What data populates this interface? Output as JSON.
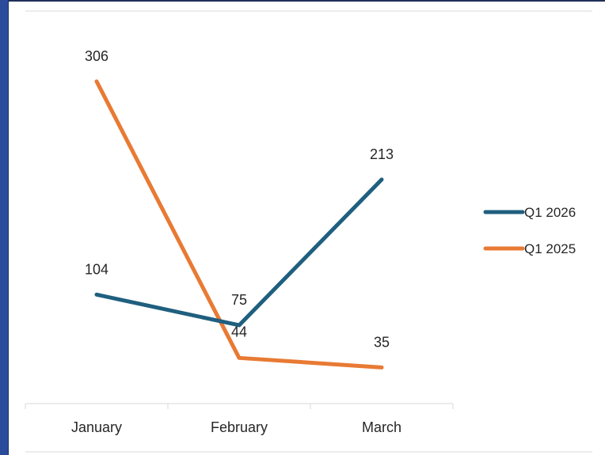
{
  "chart_data": {
    "type": "line",
    "categories": [
      "January",
      "February",
      "March"
    ],
    "series": [
      {
        "name": "Q1 2026",
        "values": [
          104,
          75,
          213
        ],
        "color": "#1f5f7f"
      },
      {
        "name": "Q1 2025",
        "values": [
          306,
          44,
          35
        ],
        "color": "#e87a34"
      }
    ],
    "title": "",
    "xlabel": "",
    "ylabel": "",
    "ylim": [
      0,
      350
    ],
    "grid": false,
    "legend": "right",
    "data_labels": true
  },
  "colors": {
    "frame_left_bar": "#2b4c9b",
    "axis_line": "#d9d9d9",
    "text": "#262626"
  }
}
